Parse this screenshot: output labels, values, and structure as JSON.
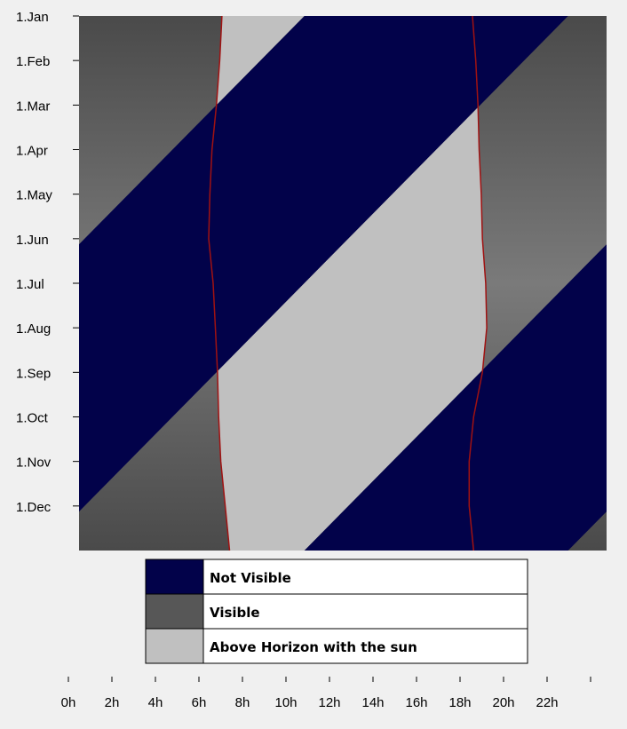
{
  "chart_data": {
    "type": "area",
    "title": "",
    "xlabel": "",
    "ylabel": "",
    "x_range_hours": [
      0,
      24
    ],
    "x_ticks": [
      {
        "hour": 0,
        "label": "0h"
      },
      {
        "hour": 2,
        "label": "2h"
      },
      {
        "hour": 4,
        "label": "4h"
      },
      {
        "hour": 6,
        "label": "6h"
      },
      {
        "hour": 8,
        "label": "8h"
      },
      {
        "hour": 10,
        "label": "10h"
      },
      {
        "hour": 12,
        "label": "12h"
      },
      {
        "hour": 14,
        "label": "14h"
      },
      {
        "hour": 16,
        "label": "16h"
      },
      {
        "hour": 18,
        "label": "18h"
      },
      {
        "hour": 20,
        "label": "20h"
      },
      {
        "hour": 22,
        "label": "22h"
      },
      {
        "hour": 24,
        "label": ""
      }
    ],
    "y_ticks": [
      {
        "month": 0,
        "label": "1.Jan"
      },
      {
        "month": 1,
        "label": "1.Feb"
      },
      {
        "month": 2,
        "label": "1.Mar"
      },
      {
        "month": 3,
        "label": "1.Apr"
      },
      {
        "month": 4,
        "label": "1.May"
      },
      {
        "month": 5,
        "label": "1.Jun"
      },
      {
        "month": 6,
        "label": "1.Jul"
      },
      {
        "month": 7,
        "label": "1.Aug"
      },
      {
        "month": 8,
        "label": "1.Sep"
      },
      {
        "month": 9,
        "label": "1.Oct"
      },
      {
        "month": 10,
        "label": "1.Nov"
      },
      {
        "month": 11,
        "label": "1.Dec"
      }
    ],
    "y_range_months": [
      0,
      12
    ],
    "bands": [
      {
        "name": "rise",
        "start_hour": 22.25,
        "shift_hours_per_month": -2.0
      },
      {
        "name": "set",
        "start_hour": 10.25,
        "shift_hours_per_month": -2.0
      }
    ],
    "sunrise_hours": [
      {
        "month": 0,
        "hour": 6.5
      },
      {
        "month": 1,
        "hour": 6.4
      },
      {
        "month": 2,
        "hour": 6.25
      },
      {
        "month": 3,
        "hour": 6.05
      },
      {
        "month": 4,
        "hour": 5.95
      },
      {
        "month": 5,
        "hour": 5.9
      },
      {
        "month": 6,
        "hour": 6.1
      },
      {
        "month": 7,
        "hour": 6.2
      },
      {
        "month": 8,
        "hour": 6.3
      },
      {
        "month": 9,
        "hour": 6.35
      },
      {
        "month": 10,
        "hour": 6.45
      },
      {
        "month": 11,
        "hour": 6.65
      },
      {
        "month": 12,
        "hour": 6.85
      }
    ],
    "sunset_hours": [
      {
        "month": 0,
        "hour": 17.9
      },
      {
        "month": 1,
        "hour": 18.05
      },
      {
        "month": 2,
        "hour": 18.15
      },
      {
        "month": 3,
        "hour": 18.2
      },
      {
        "month": 4,
        "hour": 18.3
      },
      {
        "month": 5,
        "hour": 18.35
      },
      {
        "month": 6,
        "hour": 18.5
      },
      {
        "month": 7,
        "hour": 18.55
      },
      {
        "month": 8,
        "hour": 18.35
      },
      {
        "month": 9,
        "hour": 17.95
      },
      {
        "month": 10,
        "hour": 17.75
      },
      {
        "month": 11,
        "hour": 17.75
      },
      {
        "month": 12,
        "hour": 17.95
      }
    ],
    "legend": [
      {
        "label": "Not Visible",
        "color": "#02024a"
      },
      {
        "label": "Visible",
        "color": "#575757"
      },
      {
        "label": "Above Horizon with the sun",
        "color": "#c0c0c0"
      }
    ],
    "legend_placement": "below plot",
    "colors": {
      "not_visible": "#02024a",
      "visible_edge": "#4a4a4a",
      "visible_center": "#7a7a7a",
      "with_sun": "#c0c0c0",
      "sun_line": "#a01212"
    },
    "grid": false
  }
}
